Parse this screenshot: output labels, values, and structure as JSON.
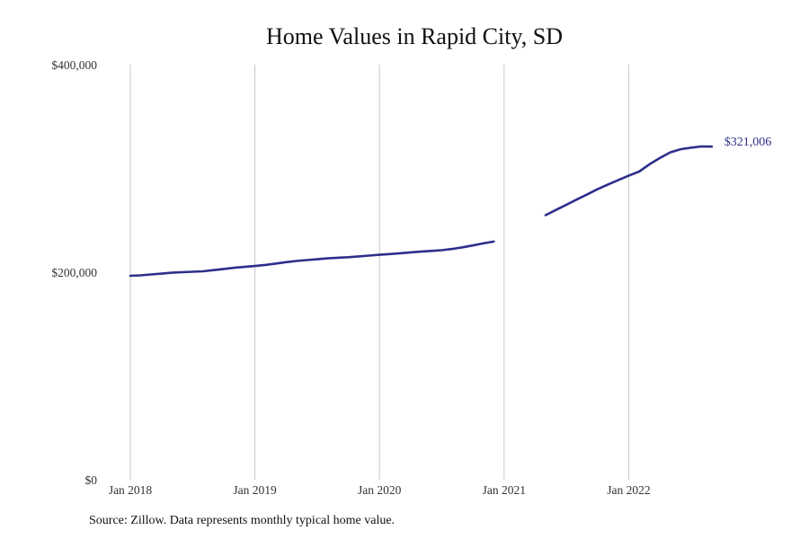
{
  "chart_data": {
    "type": "line",
    "title": "Home Values in Rapid City, SD",
    "source_note": "Source: Zillow. Data represents monthly typical home value.",
    "xlabel": "",
    "ylabel": "",
    "x_ticks": [
      {
        "date": "2018-01",
        "label": "Jan 2018"
      },
      {
        "date": "2019-01",
        "label": "Jan 2019"
      },
      {
        "date": "2020-01",
        "label": "Jan 2020"
      },
      {
        "date": "2021-01",
        "label": "Jan 2021"
      },
      {
        "date": "2022-01",
        "label": "Jan 2022"
      }
    ],
    "y_ticks": [
      {
        "value": 0,
        "label": "$0"
      },
      {
        "value": 200000,
        "label": "$200,000"
      },
      {
        "value": 400000,
        "label": "$400,000"
      }
    ],
    "ylim": [
      0,
      400000
    ],
    "xlim": [
      "2018-01",
      "2022-12"
    ],
    "grid": {
      "vertical": true,
      "horizontal": false
    },
    "line_color": "#2e2e8c",
    "series": [
      {
        "segments": [
          [
            {
              "x": "2018-01",
              "y": 196500
            },
            {
              "x": "2018-02",
              "y": 197000
            },
            {
              "x": "2018-03",
              "y": 197800
            },
            {
              "x": "2018-04",
              "y": 198600
            },
            {
              "x": "2018-05",
              "y": 199500
            },
            {
              "x": "2018-06",
              "y": 200000
            },
            {
              "x": "2018-07",
              "y": 200400
            },
            {
              "x": "2018-08",
              "y": 200900
            },
            {
              "x": "2018-09",
              "y": 202000
            },
            {
              "x": "2018-10",
              "y": 203100
            },
            {
              "x": "2018-11",
              "y": 204200
            },
            {
              "x": "2018-12",
              "y": 205100
            },
            {
              "x": "2019-01",
              "y": 206000
            },
            {
              "x": "2019-02",
              "y": 207000
            },
            {
              "x": "2019-03",
              "y": 208300
            },
            {
              "x": "2019-04",
              "y": 209700
            },
            {
              "x": "2019-05",
              "y": 210800
            },
            {
              "x": "2019-06",
              "y": 211700
            },
            {
              "x": "2019-07",
              "y": 212500
            },
            {
              "x": "2019-08",
              "y": 213300
            },
            {
              "x": "2019-09",
              "y": 213900
            },
            {
              "x": "2019-10",
              "y": 214500
            },
            {
              "x": "2019-11",
              "y": 215200
            },
            {
              "x": "2019-12",
              "y": 216000
            },
            {
              "x": "2020-01",
              "y": 216800
            },
            {
              "x": "2020-02",
              "y": 217500
            },
            {
              "x": "2020-03",
              "y": 218300
            },
            {
              "x": "2020-04",
              "y": 219100
            },
            {
              "x": "2020-05",
              "y": 219800
            },
            {
              "x": "2020-06",
              "y": 220500
            },
            {
              "x": "2020-07",
              "y": 221200
            },
            {
              "x": "2020-08",
              "y": 222400
            },
            {
              "x": "2020-09",
              "y": 224000
            },
            {
              "x": "2020-10",
              "y": 225800
            },
            {
              "x": "2020-11",
              "y": 227800
            },
            {
              "x": "2020-12",
              "y": 229500
            }
          ],
          [
            {
              "x": "2021-05",
              "y": 255000
            },
            {
              "x": "2021-06",
              "y": 260000
            },
            {
              "x": "2021-07",
              "y": 265000
            },
            {
              "x": "2021-08",
              "y": 270000
            },
            {
              "x": "2021-09",
              "y": 275000
            },
            {
              "x": "2021-10",
              "y": 280000
            },
            {
              "x": "2021-11",
              "y": 284500
            },
            {
              "x": "2021-12",
              "y": 288800
            },
            {
              "x": "2022-01",
              "y": 293000
            },
            {
              "x": "2022-02",
              "y": 297000
            },
            {
              "x": "2022-03",
              "y": 304000
            },
            {
              "x": "2022-04",
              "y": 310000
            },
            {
              "x": "2022-05",
              "y": 315500
            },
            {
              "x": "2022-06",
              "y": 318500
            },
            {
              "x": "2022-07",
              "y": 320000
            },
            {
              "x": "2022-08",
              "y": 321200
            },
            {
              "x": "2022-09",
              "y": 321006
            }
          ]
        ]
      }
    ],
    "end_label": "$321,006"
  }
}
